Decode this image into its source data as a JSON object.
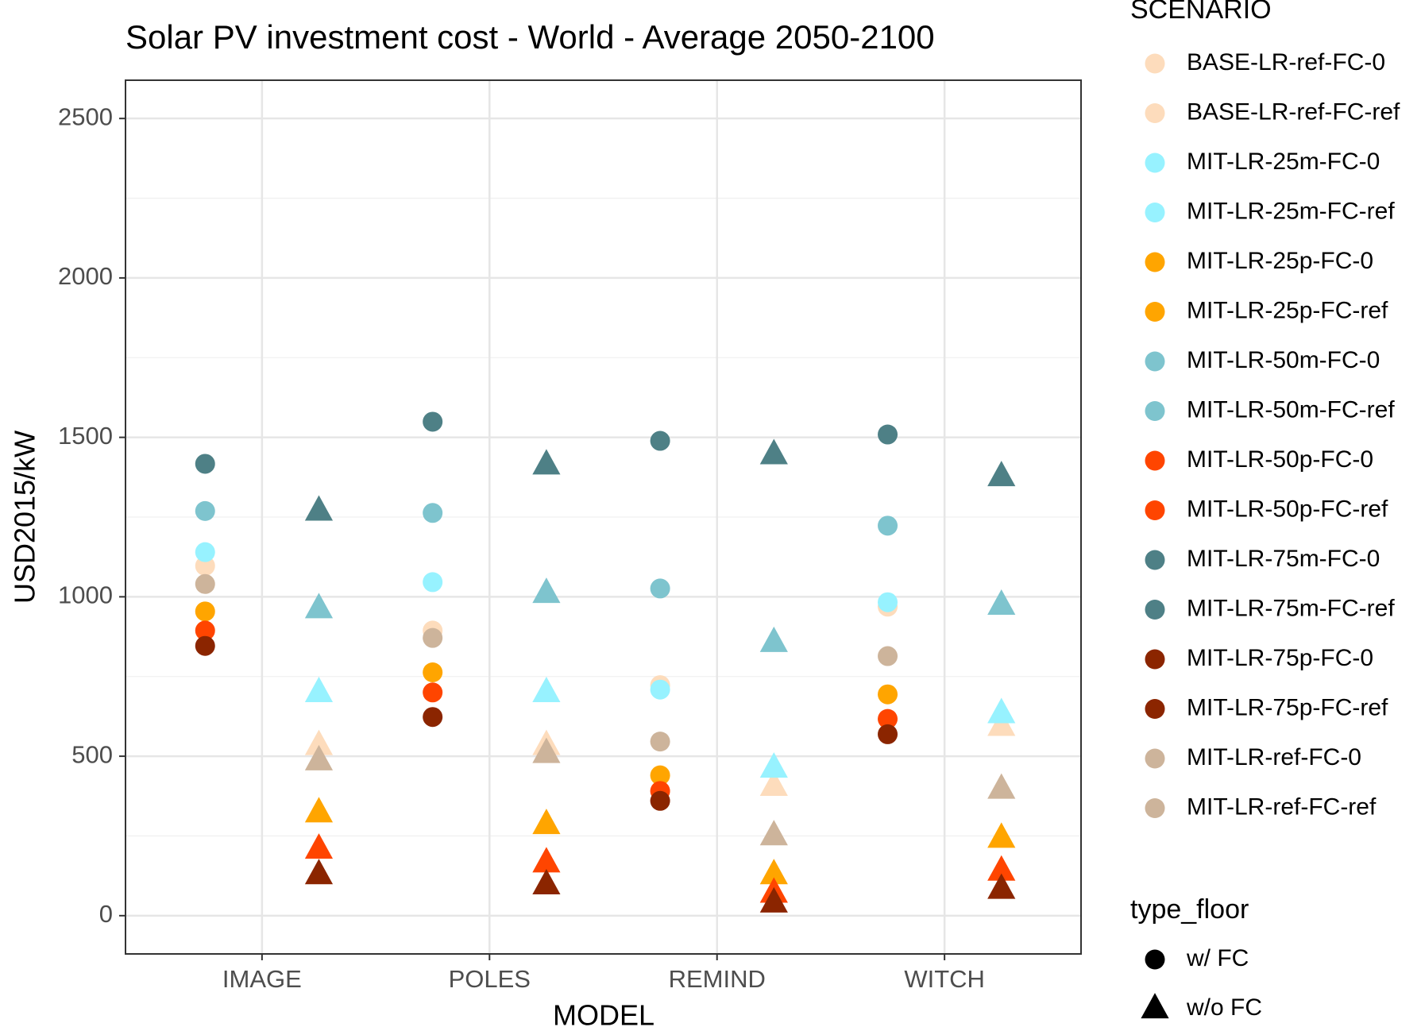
{
  "chart_data": {
    "type": "scatter",
    "title": "Solar PV investment cost - World - Average 2050-2100",
    "x_label": "MODEL",
    "y_label": "USD2015/kW",
    "categories": [
      "IMAGE",
      "POLES",
      "REMIND",
      "WITCH"
    ],
    "ylim": [
      -120,
      2620
    ],
    "yticks": [
      0,
      500,
      1000,
      1500,
      2000,
      2500
    ],
    "grid": true,
    "legend_title": "SCENARIO",
    "shape_legend_title": "type_floor",
    "shape_legend": [
      {
        "label": "w/ FC",
        "shape": "circle"
      },
      {
        "label": "w/o FC",
        "shape": "triangle"
      }
    ],
    "series": [
      {
        "name": "BASE-LR-ref-FC-0",
        "color": "#fddcbc",
        "shape": "triangle",
        "values": [
          534,
          534,
          406,
          594
        ]
      },
      {
        "name": "BASE-LR-ref-FC-ref",
        "color": "#fddcbc",
        "shape": "circle",
        "values": [
          1097,
          894,
          723,
          969
        ]
      },
      {
        "name": "MIT-LR-25m-FC-0",
        "color": "#97f2ff",
        "shape": "triangle",
        "values": [
          700,
          700,
          463,
          634
        ]
      },
      {
        "name": "MIT-LR-25m-FC-ref",
        "color": "#97f2ff",
        "shape": "circle",
        "values": [
          1140,
          1046,
          709,
          983
        ]
      },
      {
        "name": "MIT-LR-25p-FC-0",
        "color": "#ffa500",
        "shape": "triangle",
        "values": [
          323,
          286,
          129,
          243
        ]
      },
      {
        "name": "MIT-LR-25p-FC-ref",
        "color": "#ffa500",
        "shape": "circle",
        "values": [
          954,
          763,
          440,
          694
        ]
      },
      {
        "name": "MIT-LR-50m-FC-0",
        "color": "#7ec4ce",
        "shape": "triangle",
        "values": [
          963,
          1011,
          857,
          974
        ]
      },
      {
        "name": "MIT-LR-50m-FC-ref",
        "color": "#7ec4ce",
        "shape": "circle",
        "values": [
          1269,
          1263,
          1026,
          1223
        ]
      },
      {
        "name": "MIT-LR-50p-FC-0",
        "color": "#ff4500",
        "shape": "triangle",
        "values": [
          209,
          166,
          71,
          140
        ]
      },
      {
        "name": "MIT-LR-50p-FC-ref",
        "color": "#ff4500",
        "shape": "circle",
        "values": [
          894,
          700,
          391,
          617
        ]
      },
      {
        "name": "MIT-LR-75m-FC-0",
        "color": "#4e8086",
        "shape": "triangle",
        "values": [
          1269,
          1414,
          1446,
          1377
        ]
      },
      {
        "name": "MIT-LR-75m-FC-ref",
        "color": "#4e8086",
        "shape": "circle",
        "values": [
          1417,
          1549,
          1489,
          1509
        ]
      },
      {
        "name": "MIT-LR-75p-FC-0",
        "color": "#8b2500",
        "shape": "triangle",
        "values": [
          129,
          97,
          40,
          83
        ]
      },
      {
        "name": "MIT-LR-75p-FC-ref",
        "color": "#8b2500",
        "shape": "circle",
        "values": [
          846,
          623,
          360,
          569
        ]
      },
      {
        "name": "MIT-LR-ref-FC-0",
        "color": "#cdb49b",
        "shape": "triangle",
        "values": [
          486,
          509,
          251,
          397
        ]
      },
      {
        "name": "MIT-LR-ref-FC-ref",
        "color": "#cdb49b",
        "shape": "circle",
        "values": [
          1040,
          871,
          546,
          814
        ]
      }
    ]
  }
}
